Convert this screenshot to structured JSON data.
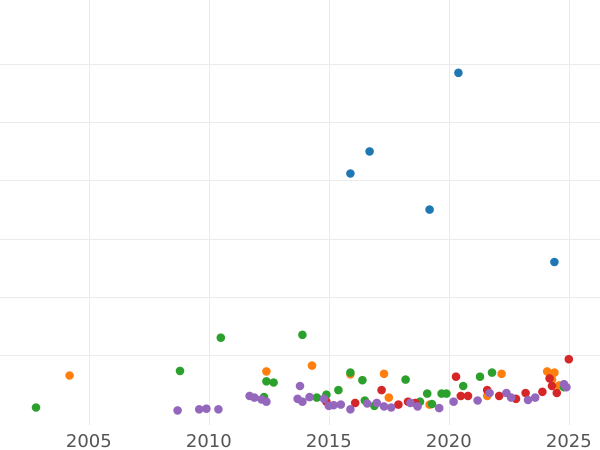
{
  "chart_data": {
    "type": "scatter",
    "title": "",
    "xlabel": "",
    "ylabel": "",
    "xlim": [
      2001.3,
      2026.3
    ],
    "ylim": [
      -0.2,
      7.1
    ],
    "grid": true,
    "legend": "none",
    "x_ticks": [
      2005,
      2010,
      2015,
      2020,
      2025
    ],
    "y_grid": [
      1,
      2,
      3,
      4,
      5,
      6
    ],
    "colors": {
      "blue": "#1f77b4",
      "orange": "#ff7f0e",
      "green": "#2ca02c",
      "red": "#d62728",
      "purple": "#9467bd",
      "grid": "#ebebeb",
      "tick_text": "#555555"
    },
    "series": [
      {
        "color": "#1f77b4",
        "points": [
          [
            2020.4,
            5.85
          ],
          [
            2016.7,
            4.5
          ],
          [
            2015.9,
            4.12
          ],
          [
            2019.2,
            3.5
          ],
          [
            2024.4,
            2.6
          ]
        ]
      },
      {
        "color": "#ff7f0e",
        "points": [
          [
            2004.2,
            0.65
          ],
          [
            2012.4,
            0.72
          ],
          [
            2014.3,
            0.82
          ],
          [
            2015.9,
            0.67
          ],
          [
            2017.3,
            0.68
          ],
          [
            2017.5,
            0.27
          ],
          [
            2019.2,
            0.15
          ],
          [
            2022.2,
            0.68
          ],
          [
            2021.6,
            0.3
          ],
          [
            2024.1,
            0.72
          ],
          [
            2024.4,
            0.7
          ],
          [
            2024.3,
            0.58
          ],
          [
            2024.6,
            0.48
          ]
        ]
      },
      {
        "color": "#2ca02c",
        "points": [
          [
            2002.8,
            0.1
          ],
          [
            2008.8,
            0.73
          ],
          [
            2010.5,
            1.3
          ],
          [
            2012.4,
            0.55
          ],
          [
            2012.7,
            0.53
          ],
          [
            2012.3,
            0.28
          ],
          [
            2013.9,
            1.35
          ],
          [
            2014.5,
            0.27
          ],
          [
            2014.9,
            0.32
          ],
          [
            2015.4,
            0.4
          ],
          [
            2015.9,
            0.7
          ],
          [
            2016.4,
            0.57
          ],
          [
            2016.5,
            0.22
          ],
          [
            2016.9,
            0.13
          ],
          [
            2018.2,
            0.58
          ],
          [
            2018.8,
            0.2
          ],
          [
            2019.1,
            0.34
          ],
          [
            2019.3,
            0.16
          ],
          [
            2019.7,
            0.34
          ],
          [
            2019.9,
            0.34
          ],
          [
            2020.6,
            0.47
          ],
          [
            2021.3,
            0.63
          ],
          [
            2021.8,
            0.7
          ],
          [
            2024.8,
            0.45
          ]
        ]
      },
      {
        "color": "#d62728",
        "points": [
          [
            2014.9,
            0.2
          ],
          [
            2016.1,
            0.18
          ],
          [
            2017.2,
            0.4
          ],
          [
            2017.9,
            0.15
          ],
          [
            2018.3,
            0.2
          ],
          [
            2018.6,
            0.18
          ],
          [
            2020.3,
            0.63
          ],
          [
            2020.5,
            0.3
          ],
          [
            2020.8,
            0.3
          ],
          [
            2021.6,
            0.4
          ],
          [
            2022.1,
            0.3
          ],
          [
            2022.8,
            0.25
          ],
          [
            2023.2,
            0.35
          ],
          [
            2023.9,
            0.37
          ],
          [
            2024.3,
            0.47
          ],
          [
            2024.5,
            0.35
          ],
          [
            2025.0,
            0.93
          ],
          [
            2024.2,
            0.6
          ]
        ]
      },
      {
        "color": "#9467bd",
        "points": [
          [
            2008.7,
            0.05
          ],
          [
            2009.6,
            0.07
          ],
          [
            2009.9,
            0.08
          ],
          [
            2010.4,
            0.07
          ],
          [
            2011.7,
            0.3
          ],
          [
            2011.9,
            0.27
          ],
          [
            2012.2,
            0.24
          ],
          [
            2012.4,
            0.2
          ],
          [
            2013.7,
            0.25
          ],
          [
            2013.9,
            0.2
          ],
          [
            2013.8,
            0.47
          ],
          [
            2014.2,
            0.28
          ],
          [
            2014.8,
            0.25
          ],
          [
            2015.0,
            0.13
          ],
          [
            2015.2,
            0.14
          ],
          [
            2015.5,
            0.15
          ],
          [
            2015.9,
            0.07
          ],
          [
            2016.6,
            0.17
          ],
          [
            2017.0,
            0.18
          ],
          [
            2017.3,
            0.12
          ],
          [
            2017.6,
            0.1
          ],
          [
            2018.4,
            0.18
          ],
          [
            2018.7,
            0.12
          ],
          [
            2019.6,
            0.09
          ],
          [
            2020.2,
            0.2
          ],
          [
            2021.2,
            0.22
          ],
          [
            2021.7,
            0.35
          ],
          [
            2022.4,
            0.35
          ],
          [
            2022.6,
            0.27
          ],
          [
            2023.3,
            0.23
          ],
          [
            2023.6,
            0.27
          ],
          [
            2024.9,
            0.45
          ],
          [
            2024.8,
            0.5
          ]
        ]
      }
    ]
  }
}
